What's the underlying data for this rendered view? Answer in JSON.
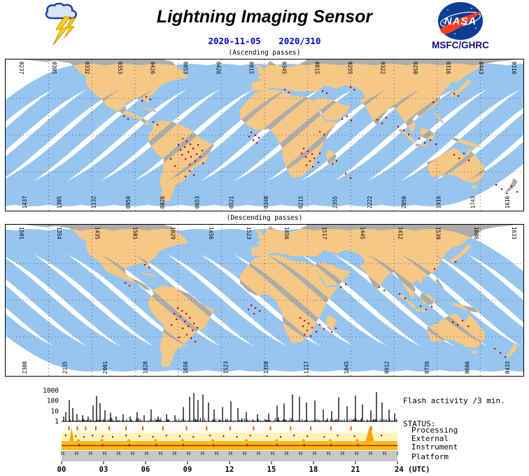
{
  "header": {
    "title": "Lightning Imaging Sensor",
    "date_iso": "2020-11-05",
    "date_doy": "2020/310",
    "agency": "MSFC/GHRC",
    "nasa_logo_text": "NASA",
    "colors": {
      "date_blue": "#0000CC",
      "agency_navy": "#10107E",
      "nasa_blue": "#0B3D91",
      "nasa_red": "#FC3D21"
    }
  },
  "maps": {
    "colors": {
      "ocean": "#FFFFFF",
      "land": "#ACACAC",
      "swath_ocean": "#96C5F0",
      "swath_land": "#F6C885",
      "flash": "#C00000"
    },
    "ascending": {
      "caption": "(Ascending passes)",
      "top_labels": [
        "0237",
        "0305",
        "0332",
        "0353",
        "0426",
        "0853",
        "0426",
        "0815",
        "0345",
        "0815",
        "0255",
        "0322",
        "0250",
        "0316",
        "0443",
        "0310"
      ],
      "bottom_labels": [
        "1437",
        "1305",
        "1132",
        "0959",
        "0826",
        "0653",
        "0521",
        "0348",
        "0215",
        "2355",
        "2222",
        "2050",
        "1916",
        "1743",
        "1610"
      ],
      "flash_points": [
        [
          252,
          112
        ],
        [
          258,
          116
        ],
        [
          263,
          120
        ],
        [
          255,
          124
        ],
        [
          249,
          128
        ],
        [
          260,
          131
        ],
        [
          267,
          126
        ],
        [
          272,
          134
        ],
        [
          264,
          138
        ],
        [
          256,
          141
        ],
        [
          270,
          144
        ],
        [
          277,
          138
        ],
        [
          281,
          147
        ],
        [
          262,
          149
        ],
        [
          251,
          135
        ],
        [
          246,
          121
        ],
        [
          274,
          121
        ],
        [
          280,
          129
        ],
        [
          235,
          141
        ],
        [
          241,
          151
        ],
        [
          262,
          158
        ],
        [
          268,
          164
        ],
        [
          256,
          166
        ],
        [
          350,
          103
        ],
        [
          356,
          107
        ],
        [
          361,
          111
        ],
        [
          353,
          114
        ],
        [
          347,
          109
        ],
        [
          358,
          118
        ],
        [
          425,
          126
        ],
        [
          431,
          130
        ],
        [
          437,
          134
        ],
        [
          428,
          138
        ],
        [
          434,
          144
        ],
        [
          440,
          140
        ],
        [
          446,
          146
        ],
        [
          429,
          150
        ],
        [
          438,
          152
        ],
        [
          448,
          133
        ],
        [
          422,
          133
        ],
        [
          448,
          102
        ],
        [
          454,
          106
        ],
        [
          466,
          148
        ],
        [
          472,
          144
        ],
        [
          485,
          162
        ],
        [
          492,
          168
        ],
        [
          480,
          84
        ],
        [
          487,
          80
        ],
        [
          493,
          86
        ],
        [
          452,
          44
        ],
        [
          458,
          47
        ],
        [
          398,
          42
        ],
        [
          404,
          46
        ],
        [
          492,
          38
        ],
        [
          497,
          42
        ],
        [
          530,
          85
        ],
        [
          537,
          90
        ],
        [
          543,
          82
        ],
        [
          560,
          95
        ],
        [
          568,
          100
        ],
        [
          575,
          106
        ],
        [
          590,
          112
        ],
        [
          598,
          118
        ],
        [
          606,
          114
        ],
        [
          614,
          120
        ],
        [
          640,
          135
        ],
        [
          647,
          140
        ],
        [
          654,
          133
        ],
        [
          661,
          143
        ],
        [
          700,
          178
        ],
        [
          708,
          184
        ],
        [
          715,
          190
        ],
        [
          722,
          180
        ],
        [
          730,
          188
        ],
        [
          200,
          52
        ],
        [
          206,
          56
        ],
        [
          194,
          58
        ],
        [
          168,
          80
        ],
        [
          174,
          84
        ],
        [
          210,
          88
        ],
        [
          216,
          92
        ],
        [
          640,
          48
        ],
        [
          646,
          51
        ],
        [
          610,
          60
        ]
      ]
    },
    "descending": {
      "caption": "(Descending passes)",
      "top_labels": [
        "1501",
        "1354",
        "1435",
        "1501",
        "1029",
        "1456",
        "1523",
        "1456",
        "1517",
        "1445",
        "1412",
        "1539",
        "1606",
        "1633"
      ],
      "bottom_labels": [
        "2308",
        "2135",
        "2001",
        "1828",
        "1656",
        "1523",
        "1350",
        "1217",
        "1045",
        "0912",
        "0739",
        "0606",
        "0433"
      ],
      "flash_points": [
        [
          245,
          118
        ],
        [
          251,
          122
        ],
        [
          257,
          126
        ],
        [
          249,
          130
        ],
        [
          243,
          134
        ],
        [
          255,
          137
        ],
        [
          262,
          132
        ],
        [
          268,
          140
        ],
        [
          260,
          144
        ],
        [
          252,
          147
        ],
        [
          266,
          150
        ],
        [
          273,
          146
        ],
        [
          240,
          126
        ],
        [
          236,
          142
        ],
        [
          258,
          156
        ],
        [
          264,
          161
        ],
        [
          270,
          166
        ],
        [
          247,
          160
        ],
        [
          350,
          114
        ],
        [
          356,
          118
        ],
        [
          362,
          122
        ],
        [
          354,
          126
        ],
        [
          346,
          120
        ],
        [
          420,
          132
        ],
        [
          426,
          136
        ],
        [
          432,
          140
        ],
        [
          424,
          144
        ],
        [
          430,
          150
        ],
        [
          437,
          146
        ],
        [
          443,
          152
        ],
        [
          426,
          156
        ],
        [
          435,
          158
        ],
        [
          448,
          142
        ],
        [
          454,
          148
        ],
        [
          465,
          152
        ],
        [
          471,
          147
        ],
        [
          478,
          88
        ],
        [
          485,
          84
        ],
        [
          533,
          88
        ],
        [
          540,
          93
        ],
        [
          562,
          98
        ],
        [
          570,
          104
        ],
        [
          592,
          115
        ],
        [
          600,
          120
        ],
        [
          608,
          116
        ],
        [
          638,
          138
        ],
        [
          645,
          142
        ],
        [
          652,
          136
        ],
        [
          660,
          144
        ],
        [
          698,
          176
        ],
        [
          706,
          182
        ],
        [
          713,
          188
        ],
        [
          198,
          56
        ],
        [
          204,
          60
        ],
        [
          170,
          82
        ],
        [
          176,
          86
        ],
        [
          642,
          52
        ],
        [
          612,
          62
        ]
      ]
    }
  },
  "chart_data": {
    "type": "bar",
    "title": "Flash activity /3 min.",
    "yscale": "log",
    "ylim": [
      1,
      1000
    ],
    "ylabel_ticks": [
      "1000",
      "100",
      "10",
      "1"
    ],
    "xlim_hours": [
      0,
      24
    ],
    "x_ticks": [
      "00",
      "03",
      "06",
      "09",
      "12",
      "15",
      "18",
      "21",
      "24 (UTC)"
    ],
    "spikes": [
      [
        0.15,
        3
      ],
      [
        0.3,
        8
      ],
      [
        0.55,
        120
      ],
      [
        0.8,
        20
      ],
      [
        1.1,
        5
      ],
      [
        1.5,
        4
      ],
      [
        1.9,
        3
      ],
      [
        2.25,
        35
      ],
      [
        2.5,
        300
      ],
      [
        2.75,
        60
      ],
      [
        3.1,
        12
      ],
      [
        3.5,
        7
      ],
      [
        3.9,
        3
      ],
      [
        4.4,
        5
      ],
      [
        4.9,
        3
      ],
      [
        5.4,
        8
      ],
      [
        5.9,
        4
      ],
      [
        6.4,
        15
      ],
      [
        6.9,
        3
      ],
      [
        7.5,
        5
      ],
      [
        8.1,
        4
      ],
      [
        8.7,
        25
      ],
      [
        9.15,
        250
      ],
      [
        9.45,
        600
      ],
      [
        9.75,
        120
      ],
      [
        10.1,
        420
      ],
      [
        10.5,
        70
      ],
      [
        10.9,
        15
      ],
      [
        11.5,
        25
      ],
      [
        12.1,
        90
      ],
      [
        12.6,
        20
      ],
      [
        13.2,
        8
      ],
      [
        14.0,
        5
      ],
      [
        14.8,
        6
      ],
      [
        15.4,
        35
      ],
      [
        15.9,
        55
      ],
      [
        16.5,
        420
      ],
      [
        17.0,
        260
      ],
      [
        17.5,
        70
      ],
      [
        18.1,
        110
      ],
      [
        18.7,
        15
      ],
      [
        19.3,
        10
      ],
      [
        19.8,
        220
      ],
      [
        20.4,
        30
      ],
      [
        21.0,
        320
      ],
      [
        21.5,
        45
      ],
      [
        22.1,
        12
      ],
      [
        22.5,
        700
      ],
      [
        22.9,
        70
      ],
      [
        23.4,
        15
      ],
      [
        23.8,
        6
      ]
    ]
  },
  "status": {
    "heading": "STATUS:",
    "rows": [
      {
        "label": "Processing",
        "bg": "#FFFDF2",
        "marks": [
          0.02,
          0.045,
          0.07,
          0.1,
          0.14,
          0.19,
          0.24,
          0.3,
          0.37,
          0.43,
          0.5,
          0.57,
          0.62,
          0.68,
          0.74,
          0.8,
          0.86,
          0.92
        ]
      },
      {
        "label": "External",
        "bg": "#FFF4B8",
        "marks": [
          0.01,
          0.04,
          0.065,
          0.09,
          0.12,
          0.15,
          0.19,
          0.23,
          0.27,
          0.31,
          0.35,
          0.39,
          0.44,
          0.48,
          0.52,
          0.56,
          0.61,
          0.65,
          0.69,
          0.73,
          0.78,
          0.82,
          0.87,
          0.91,
          0.95
        ]
      },
      {
        "label": "Instrument",
        "bg": "#FFB90F",
        "marks": [
          0.05,
          0.12,
          0.2,
          0.28,
          0.36,
          0.45,
          0.55,
          0.64,
          0.72,
          0.8,
          0.88
        ]
      },
      {
        "label": "Platform",
        "bg": "#C6C6C6",
        "marks": []
      }
    ]
  }
}
